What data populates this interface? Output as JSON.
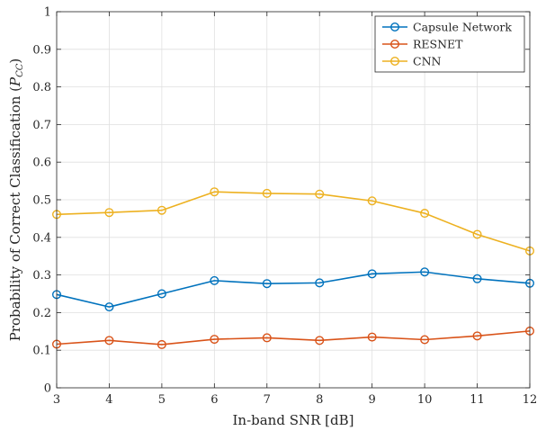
{
  "chart_data": {
    "type": "line",
    "title": "",
    "xlabel": "In-band SNR [dB]",
    "ylabel": "Probability of Correct Classification (P_CC)",
    "ylabel_parts": {
      "prefix": "Probability of Correct Classification (",
      "symbol": "P",
      "subscript": "CC",
      "suffix": ")"
    },
    "x": [
      3,
      4,
      5,
      6,
      7,
      8,
      9,
      10,
      11,
      12
    ],
    "xlim": [
      3,
      12
    ],
    "ylim": [
      0,
      1
    ],
    "xticks": [
      "3",
      "4",
      "5",
      "6",
      "7",
      "8",
      "9",
      "10",
      "11",
      "12"
    ],
    "yticks": [
      "0",
      "0.1",
      "0.2",
      "0.3",
      "0.4",
      "0.5",
      "0.6",
      "0.7",
      "0.8",
      "0.9",
      "1"
    ],
    "grid": true,
    "legend_position": "top-right",
    "series": [
      {
        "name": "Capsule Network",
        "color": "#0072bd",
        "marker": "circle",
        "values": [
          0.248,
          0.215,
          0.25,
          0.285,
          0.277,
          0.279,
          0.303,
          0.308,
          0.29,
          0.278
        ]
      },
      {
        "name": "RESNET",
        "color": "#d95319",
        "marker": "circle",
        "values": [
          0.116,
          0.126,
          0.115,
          0.129,
          0.133,
          0.126,
          0.135,
          0.128,
          0.138,
          0.151
        ]
      },
      {
        "name": "CNN",
        "color": "#edb120",
        "marker": "circle",
        "values": [
          0.461,
          0.466,
          0.472,
          0.521,
          0.517,
          0.515,
          0.497,
          0.464,
          0.408,
          0.364
        ]
      }
    ]
  }
}
